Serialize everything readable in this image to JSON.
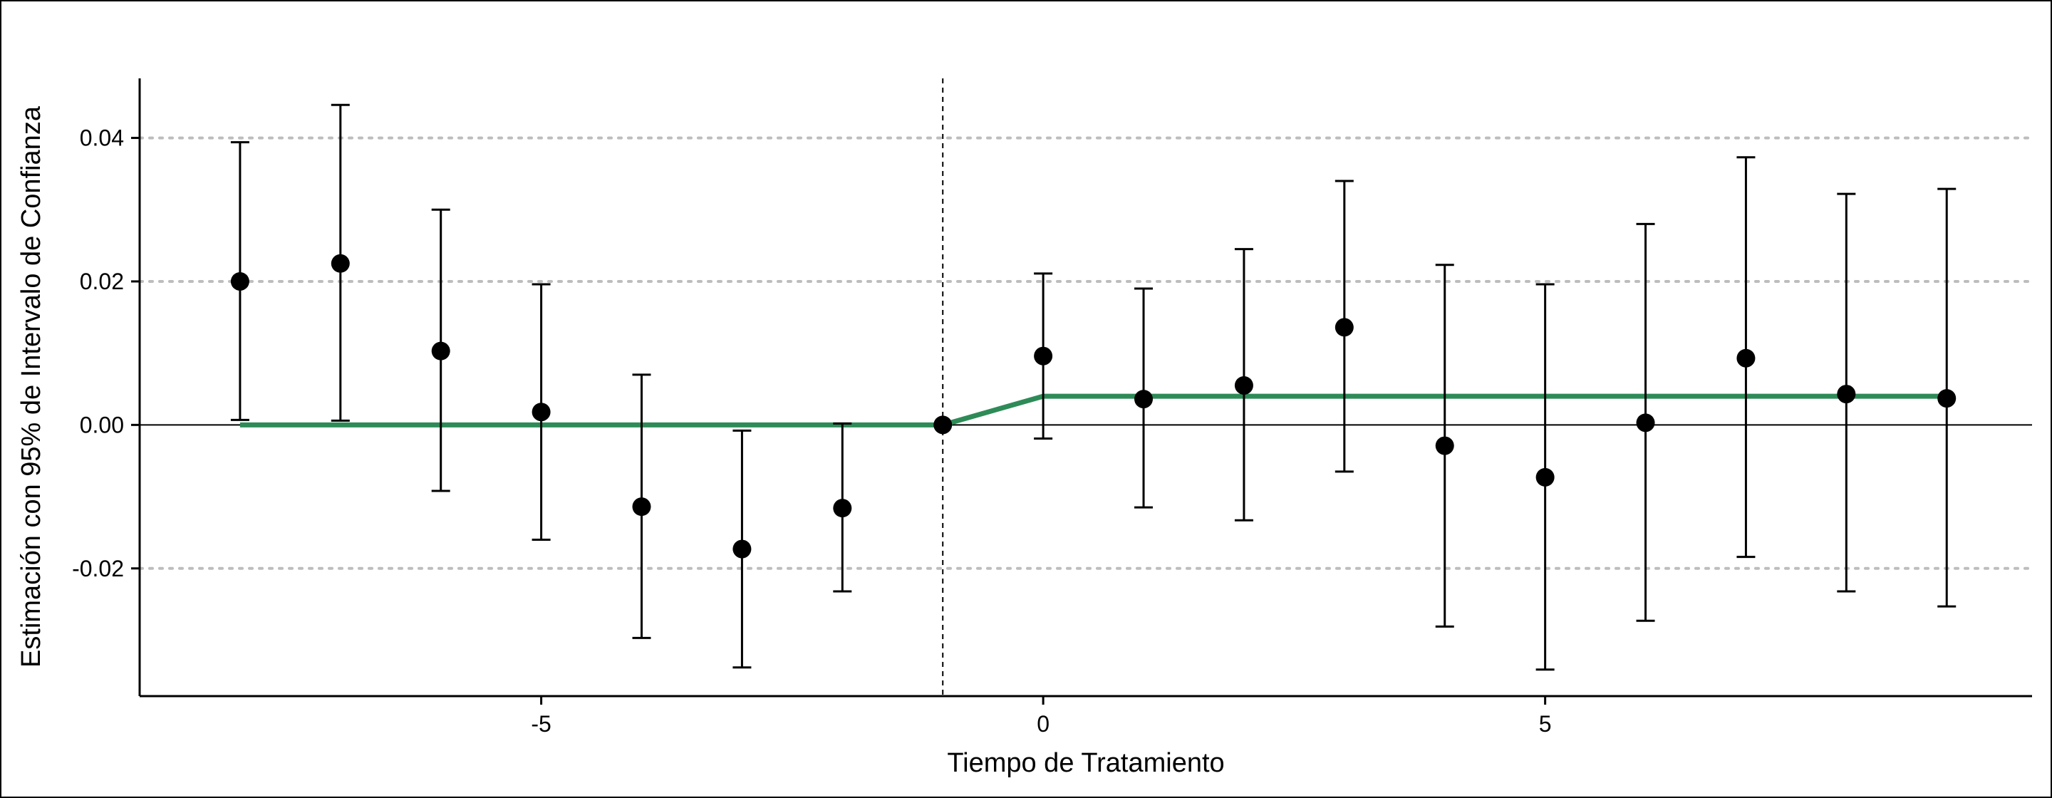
{
  "chart_data": {
    "type": "scatter",
    "subtype": "event-study coefficient plot with 95% confidence intervals",
    "title": "",
    "xlabel": "Tiempo de Tratamiento",
    "ylabel": "Estimación con 95% de Intervalo de Confianza",
    "xlim": [
      -9.0,
      9.85
    ],
    "ylim": [
      -0.0378,
      0.0483
    ],
    "x_ticks": [
      -5,
      0,
      5
    ],
    "x_tick_labels": [
      "-5",
      "0",
      "5"
    ],
    "y_ticks": [
      -0.02,
      0.0,
      0.02,
      0.04
    ],
    "y_tick_labels": [
      "-0.02",
      "0.00",
      "0.02",
      "0.04"
    ],
    "horizontal_gridlines": "dotted, at y ticks",
    "zero_line": "solid at y = 0",
    "reference_vline": {
      "x": -1,
      "style": "dashed"
    },
    "points": [
      {
        "x": -8,
        "y": 0.02,
        "lo": 0.0007,
        "hi": 0.0394
      },
      {
        "x": -7,
        "y": 0.0225,
        "lo": 0.0006,
        "hi": 0.0446
      },
      {
        "x": -6,
        "y": 0.0103,
        "lo": -0.0092,
        "hi": 0.03
      },
      {
        "x": -5,
        "y": 0.0018,
        "lo": -0.016,
        "hi": 0.0196
      },
      {
        "x": -4,
        "y": -0.0114,
        "lo": -0.0297,
        "hi": 0.007
      },
      {
        "x": -3,
        "y": -0.0173,
        "lo": -0.0338,
        "hi": -0.0008
      },
      {
        "x": -2,
        "y": -0.0116,
        "lo": -0.0232,
        "hi": 0.0002
      },
      {
        "x": -1,
        "y": 0.0,
        "lo": null,
        "hi": null
      },
      {
        "x": 0,
        "y": 0.0096,
        "lo": -0.0019,
        "hi": 0.0211
      },
      {
        "x": 1,
        "y": 0.0036,
        "lo": -0.0115,
        "hi": 0.019
      },
      {
        "x": 2,
        "y": 0.0055,
        "lo": -0.0133,
        "hi": 0.0245
      },
      {
        "x": 3,
        "y": 0.0136,
        "lo": -0.0065,
        "hi": 0.034
      },
      {
        "x": 4,
        "y": -0.0029,
        "lo": -0.0281,
        "hi": 0.0223
      },
      {
        "x": 5,
        "y": -0.0073,
        "lo": -0.0341,
        "hi": 0.0196
      },
      {
        "x": 6,
        "y": 0.0003,
        "lo": -0.0273,
        "hi": 0.028
      },
      {
        "x": 7,
        "y": 0.0093,
        "lo": -0.0184,
        "hi": 0.0373
      },
      {
        "x": 8,
        "y": 0.0043,
        "lo": -0.0232,
        "hi": 0.0322
      },
      {
        "x": 9,
        "y": 0.0037,
        "lo": -0.0253,
        "hi": 0.0329
      }
    ],
    "reference_line": {
      "color": "#2e8b57",
      "x": [
        -8,
        -1,
        0,
        9
      ],
      "y": [
        0.0,
        0.0,
        0.004,
        0.004
      ]
    }
  }
}
